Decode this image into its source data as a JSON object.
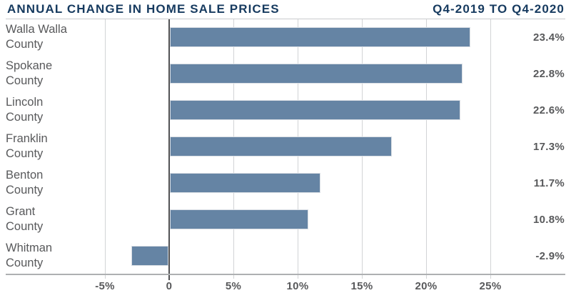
{
  "header": {
    "title": "ANNUAL CHANGE IN HOME SALE PRICES",
    "period": "Q4-2019 TO Q4-2020"
  },
  "chart_data": {
    "type": "bar",
    "orientation": "horizontal",
    "title": "ANNUAL CHANGE IN HOME SALE PRICES",
    "subtitle": "Q4-2019 TO Q4-2020",
    "unit": "percent",
    "categories": [
      "Walla Walla County",
      "Spokane County",
      "Lincoln County",
      "Franklin County",
      "Benton County",
      "Grant County",
      "Whitman County"
    ],
    "category_lines": [
      [
        "Walla Walla",
        "County"
      ],
      [
        "Spokane",
        "County"
      ],
      [
        "Lincoln",
        "County"
      ],
      [
        "Franklin",
        "County"
      ],
      [
        "Benton",
        "County"
      ],
      [
        "Grant",
        "County"
      ],
      [
        "Whitman",
        "County"
      ]
    ],
    "values": [
      23.4,
      22.8,
      22.6,
      17.3,
      11.7,
      10.8,
      -2.9
    ],
    "value_labels": [
      "23.4%",
      "22.8%",
      "22.6%",
      "17.3%",
      "11.7%",
      "10.8%",
      "-2.9%"
    ],
    "x_ticks": [
      {
        "value": -5,
        "label": "-5%"
      },
      {
        "value": 0,
        "label": "0"
      },
      {
        "value": 5,
        "label": "5%"
      },
      {
        "value": 10,
        "label": "10%"
      },
      {
        "value": 15,
        "label": "15%"
      },
      {
        "value": 20,
        "label": "20%"
      },
      {
        "value": 25,
        "label": "25%"
      }
    ],
    "xlim": [
      -12.7,
      30.8
    ],
    "grid": true,
    "legend": "none",
    "colors": {
      "bar": "#6584a4",
      "title": "#163a5f",
      "text": "#58595b",
      "gridline": "#d2d4d6",
      "zero_line": "#515254",
      "axis_line": "#aeb0b2",
      "top_line": "#c9cbcd"
    }
  }
}
